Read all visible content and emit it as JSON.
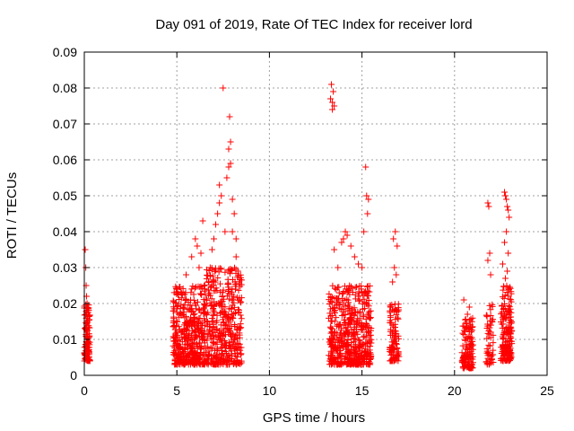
{
  "chart_data": {
    "type": "scatter",
    "title": "Day 091 of 2019, Rate Of TEC Index for receiver lord",
    "xlabel": "GPS time / hours",
    "ylabel": "ROTI / TECUs",
    "xlim": [
      0,
      25
    ],
    "ylim": [
      0,
      0.09
    ],
    "x_ticks": [
      0,
      5,
      10,
      15,
      20,
      25
    ],
    "y_ticks": [
      0,
      0.01,
      0.02,
      0.03,
      0.04,
      0.05,
      0.06,
      0.07,
      0.08,
      0.09
    ],
    "x_tick_labels": [
      "0",
      "5",
      "10",
      "15",
      "20",
      "25"
    ],
    "y_tick_labels": [
      "0",
      "0.01",
      "0.02",
      "0.03",
      "0.04",
      "0.05",
      "0.06",
      "0.07",
      "0.08",
      "0.09"
    ],
    "grid": true,
    "marker": "plus",
    "marker_color": "#ff0000",
    "clusters": [
      {
        "x_range": [
          0.0,
          0.3
        ],
        "y_range": [
          0.004,
          0.02
        ],
        "count": 110
      },
      {
        "x_range": [
          4.8,
          6.5
        ],
        "y_range": [
          0.003,
          0.025
        ],
        "count": 420
      },
      {
        "x_range": [
          6.5,
          8.5
        ],
        "y_range": [
          0.003,
          0.03
        ],
        "count": 420
      },
      {
        "x_range": [
          13.2,
          15.5
        ],
        "y_range": [
          0.003,
          0.025
        ],
        "count": 520
      },
      {
        "x_range": [
          16.5,
          17.0
        ],
        "y_range": [
          0.004,
          0.02
        ],
        "count": 100
      },
      {
        "x_range": [
          20.4,
          21.0
        ],
        "y_range": [
          0.002,
          0.016
        ],
        "count": 130
      },
      {
        "x_range": [
          21.7,
          22.1
        ],
        "y_range": [
          0.003,
          0.02
        ],
        "count": 50
      },
      {
        "x_range": [
          22.5,
          23.1
        ],
        "y_range": [
          0.004,
          0.025
        ],
        "count": 170
      }
    ],
    "points": [
      [
        0.05,
        0.035
      ],
      [
        0.08,
        0.03
      ],
      [
        0.1,
        0.025
      ],
      [
        0.12,
        0.022
      ],
      [
        0.15,
        0.02
      ],
      [
        5.0,
        0.024
      ],
      [
        5.5,
        0.028
      ],
      [
        5.8,
        0.033
      ],
      [
        6.0,
        0.038
      ],
      [
        6.1,
        0.036
      ],
      [
        6.2,
        0.03
      ],
      [
        6.3,
        0.034
      ],
      [
        6.4,
        0.043
      ],
      [
        6.8,
        0.03
      ],
      [
        6.9,
        0.035
      ],
      [
        7.0,
        0.038
      ],
      [
        7.1,
        0.042
      ],
      [
        7.2,
        0.045
      ],
      [
        7.3,
        0.048
      ],
      [
        7.3,
        0.053
      ],
      [
        7.4,
        0.05
      ],
      [
        7.5,
        0.08
      ],
      [
        7.6,
        0.04
      ],
      [
        7.7,
        0.055
      ],
      [
        7.8,
        0.058
      ],
      [
        7.8,
        0.063
      ],
      [
        7.85,
        0.072
      ],
      [
        7.9,
        0.065
      ],
      [
        7.9,
        0.059
      ],
      [
        8.0,
        0.049
      ],
      [
        8.1,
        0.045
      ],
      [
        8.0,
        0.04
      ],
      [
        8.2,
        0.038
      ],
      [
        8.2,
        0.033
      ],
      [
        8.3,
        0.029
      ],
      [
        13.3,
        0.077
      ],
      [
        13.35,
        0.081
      ],
      [
        13.4,
        0.076
      ],
      [
        13.45,
        0.079
      ],
      [
        13.5,
        0.075
      ],
      [
        13.4,
        0.074
      ],
      [
        13.5,
        0.035
      ],
      [
        13.7,
        0.03
      ],
      [
        13.9,
        0.037
      ],
      [
        14.0,
        0.038
      ],
      [
        14.1,
        0.04
      ],
      [
        14.2,
        0.039
      ],
      [
        14.4,
        0.036
      ],
      [
        14.6,
        0.033
      ],
      [
        14.8,
        0.031
      ],
      [
        15.0,
        0.03
      ],
      [
        15.1,
        0.04
      ],
      [
        15.2,
        0.058
      ],
      [
        15.25,
        0.05
      ],
      [
        15.3,
        0.045
      ],
      [
        15.35,
        0.049
      ],
      [
        16.7,
        0.038
      ],
      [
        16.8,
        0.04
      ],
      [
        16.9,
        0.036
      ],
      [
        16.75,
        0.03
      ],
      [
        16.85,
        0.028
      ],
      [
        16.65,
        0.026
      ],
      [
        20.5,
        0.021
      ],
      [
        20.7,
        0.017
      ],
      [
        20.8,
        0.019
      ],
      [
        21.8,
        0.048
      ],
      [
        21.85,
        0.047
      ],
      [
        21.9,
        0.034
      ],
      [
        21.8,
        0.032
      ],
      [
        21.95,
        0.028
      ],
      [
        22.7,
        0.051
      ],
      [
        22.75,
        0.05
      ],
      [
        22.8,
        0.049
      ],
      [
        22.85,
        0.047
      ],
      [
        22.9,
        0.046
      ],
      [
        22.95,
        0.044
      ],
      [
        22.8,
        0.04
      ],
      [
        22.7,
        0.037
      ],
      [
        22.9,
        0.034
      ],
      [
        22.6,
        0.031
      ],
      [
        22.85,
        0.029
      ],
      [
        22.75,
        0.027
      ]
    ]
  }
}
